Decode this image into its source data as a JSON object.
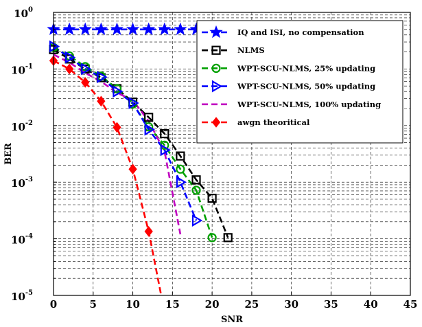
{
  "chart_data": {
    "type": "line",
    "title": "",
    "xlabel": "SNR",
    "ylabel": "BER",
    "xlim": [
      0,
      45
    ],
    "ylim": [
      1e-05,
      1
    ],
    "yscale": "log",
    "grid": true,
    "legend_position": "top-right",
    "x_ticks": [
      "0",
      "5",
      "10",
      "15",
      "20",
      "25",
      "30",
      "35",
      "40",
      "45"
    ],
    "y_ticks": [
      {
        "base": "10",
        "exp": "0"
      },
      {
        "base": "10",
        "exp": "-1"
      },
      {
        "base": "10",
        "exp": "-2"
      },
      {
        "base": "10",
        "exp": "-3"
      },
      {
        "base": "10",
        "exp": "-4"
      },
      {
        "base": "10",
        "exp": "-5"
      }
    ],
    "series": [
      {
        "name": "IQ and ISI, no compensation",
        "color": "#0000ff",
        "marker": "star",
        "x": [
          0,
          2,
          4,
          6,
          8,
          10,
          12,
          14,
          16,
          18,
          20,
          22,
          24
        ],
        "y": [
          0.5,
          0.5,
          0.5,
          0.5,
          0.5,
          0.5,
          0.5,
          0.5,
          0.5,
          0.5,
          0.5,
          0.5,
          0.5
        ]
      },
      {
        "name": "NLMS",
        "color": "#000000",
        "marker": "square",
        "x": [
          0,
          2,
          4,
          6,
          8,
          10,
          12,
          14,
          16,
          18,
          20,
          22
        ],
        "y": [
          0.22,
          0.15,
          0.1,
          0.07,
          0.045,
          0.026,
          0.014,
          0.0072,
          0.0029,
          0.0011,
          0.00052,
          0.000105
        ]
      },
      {
        "name": "WPT-SCU-NLMS, 25% updating",
        "color": "#00a000",
        "marker": "circle",
        "x": [
          0,
          2,
          4,
          6,
          8,
          10,
          12,
          14,
          16,
          18,
          20
        ],
        "y": [
          0.24,
          0.17,
          0.11,
          0.075,
          0.045,
          0.024,
          0.0095,
          0.0045,
          0.0017,
          0.00072,
          0.000105
        ]
      },
      {
        "name": "WPT-SCU-NLMS, 50% updating",
        "color": "#0000ff",
        "marker": "triangle-right",
        "x": [
          0,
          2,
          4,
          6,
          8,
          10,
          12,
          14,
          16,
          18
        ],
        "y": [
          0.25,
          0.16,
          0.1,
          0.072,
          0.04,
          0.025,
          0.0085,
          0.0037,
          0.001,
          0.00021
        ]
      },
      {
        "name": "WPT-SCU-NLMS, 100% updating",
        "color": "#c000c0",
        "marker": "none",
        "x": [
          0,
          2,
          4,
          6,
          8,
          10,
          12,
          14,
          16
        ],
        "y": [
          0.18,
          0.13,
          0.085,
          0.06,
          0.038,
          0.028,
          0.012,
          0.0035,
          0.00012
        ]
      },
      {
        "name": "awgn theoritical",
        "color": "#ff0000",
        "marker": "diamond",
        "x": [
          0,
          2,
          4,
          6,
          8,
          10,
          12,
          14
        ],
        "y": [
          0.14,
          0.1,
          0.058,
          0.027,
          0.0093,
          0.0017,
          0.000135,
          5e-06
        ]
      }
    ]
  }
}
